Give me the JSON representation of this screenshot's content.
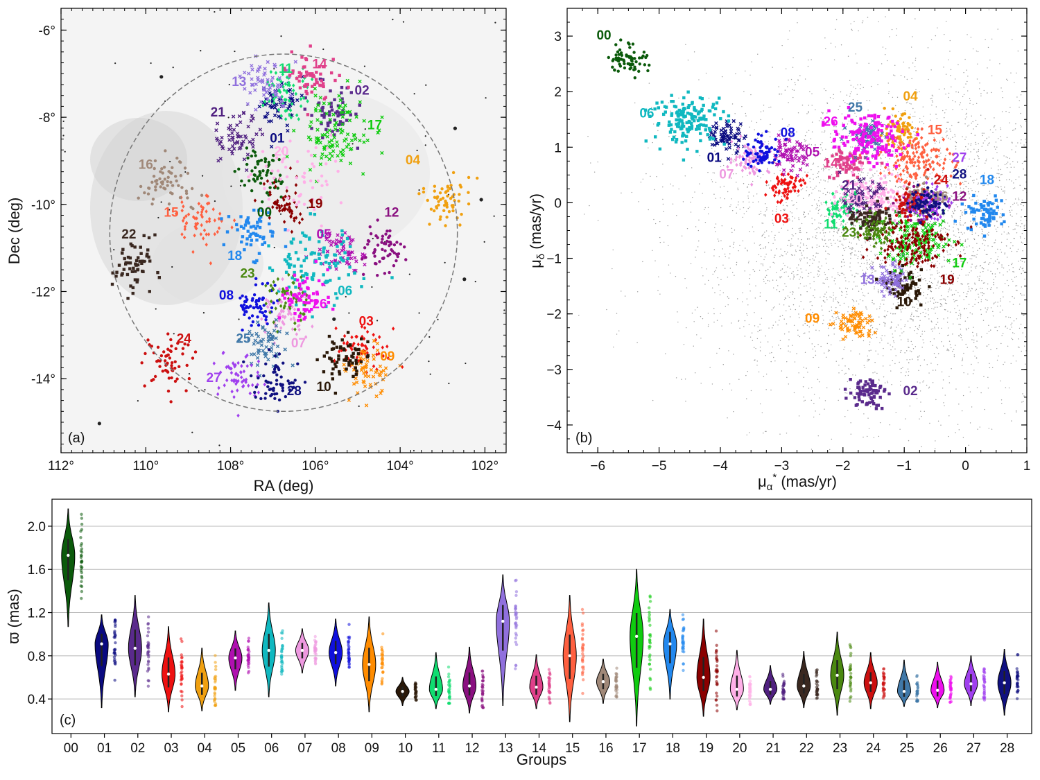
{
  "chart_data": [
    {
      "type": "scatter",
      "panel": "(a)",
      "xlabel": "RA (deg)",
      "ylabel": "Dec (deg)",
      "xlim": [
        112,
        101.5
      ],
      "ylim": [
        -15.7,
        -5.5
      ],
      "x_ticks": [
        "112°",
        "110°",
        "108°",
        "106°",
        "104°",
        "102°"
      ],
      "x_tick_values": [
        112,
        110,
        108,
        106,
        104,
        102
      ],
      "y_ticks": [
        "-6°",
        "-8°",
        "-10°",
        "-12°",
        "-14°"
      ],
      "y_tick_values": [
        -6,
        -8,
        -10,
        -12,
        -14
      ],
      "boundary_circle": {
        "center_ra": 106.75,
        "center_dec": -10.65,
        "radius_deg": 4.1
      },
      "groups": [
        {
          "id": "00",
          "ra": 107.2,
          "dec": -9.3,
          "label_ra": 107.2,
          "label_dec": -10.2
        },
        {
          "id": "01",
          "ra": 106.9,
          "dec": -7.7,
          "label_ra": 106.9,
          "label_dec": -8.5
        },
        {
          "id": "02",
          "ra": 105.6,
          "dec": -7.9,
          "label_ra": 104.9,
          "label_dec": -7.4
        },
        {
          "id": "03",
          "ra": 104.9,
          "dec": -13.3,
          "label_ra": 104.8,
          "label_dec": -12.7
        },
        {
          "id": "04",
          "ra": 102.9,
          "dec": -9.9,
          "label_ra": 103.7,
          "label_dec": -9.0
        },
        {
          "id": "05",
          "ra": 105.3,
          "dec": -11.1,
          "label_ra": 105.8,
          "label_dec": -10.7
        },
        {
          "id": "06",
          "ra": 106.0,
          "dec": -11.3,
          "label_ra": 105.3,
          "label_dec": -12.0
        },
        {
          "id": "07",
          "ra": 106.7,
          "dec": -12.6,
          "label_ra": 106.4,
          "label_dec": -13.2
        },
        {
          "id": "08",
          "ra": 107.4,
          "dec": -12.3,
          "label_ra": 108.1,
          "label_dec": -12.1
        },
        {
          "id": "09",
          "ra": 104.8,
          "dec": -13.8,
          "label_ra": 104.3,
          "label_dec": -13.5
        },
        {
          "id": "10",
          "ra": 105.3,
          "dec": -13.6,
          "label_ra": 105.8,
          "label_dec": -14.2
        },
        {
          "id": "11",
          "ra": 106.7,
          "dec": -7.5,
          "label_ra": 106.7,
          "label_dec": -6.9
        },
        {
          "id": "12",
          "ra": 104.3,
          "dec": -11.0,
          "label_ra": 104.2,
          "label_dec": -10.2
        },
        {
          "id": "13",
          "ra": 107.2,
          "dec": -7.2,
          "label_ra": 107.8,
          "label_dec": -7.2
        },
        {
          "id": "14",
          "ra": 106.1,
          "dec": -7.1,
          "label_ra": 105.9,
          "label_dec": -6.8
        },
        {
          "id": "15",
          "ra": 108.7,
          "dec": -10.3,
          "label_ra": 109.4,
          "label_dec": -10.2
        },
        {
          "id": "16",
          "ra": 109.5,
          "dec": -9.5,
          "label_ra": 110.0,
          "label_dec": -9.1
        },
        {
          "id": "17",
          "ra": 105.5,
          "dec": -8.4,
          "label_ra": 104.6,
          "label_dec": -8.2
        },
        {
          "id": "18",
          "ra": 107.4,
          "dec": -10.6,
          "label_ra": 107.9,
          "label_dec": -11.2
        },
        {
          "id": "19",
          "ra": 106.7,
          "dec": -10.0,
          "label_ra": 106.0,
          "label_dec": -10.0
        },
        {
          "id": "20",
          "ra": 106.4,
          "dec": -9.4,
          "label_ra": 106.8,
          "label_dec": -8.8
        },
        {
          "id": "21",
          "ra": 107.9,
          "dec": -8.5,
          "label_ra": 108.3,
          "label_dec": -7.9
        },
        {
          "id": "22",
          "ra": 110.2,
          "dec": -11.5,
          "label_ra": 110.4,
          "label_dec": -10.7
        },
        {
          "id": "23",
          "ra": 106.6,
          "dec": -12.2,
          "label_ra": 107.6,
          "label_dec": -11.6
        },
        {
          "id": "24",
          "ra": 109.5,
          "dec": -13.6,
          "label_ra": 109.1,
          "label_dec": -13.1
        },
        {
          "id": "25",
          "ra": 107.2,
          "dec": -13.2,
          "label_ra": 107.7,
          "label_dec": -13.1
        },
        {
          "id": "26",
          "ra": 106.3,
          "dec": -12.1,
          "label_ra": 105.9,
          "label_dec": -12.3
        },
        {
          "id": "27",
          "ra": 107.8,
          "dec": -13.9,
          "label_ra": 108.4,
          "label_dec": -14.0
        },
        {
          "id": "28",
          "ra": 107.0,
          "dec": -14.1,
          "label_ra": 106.5,
          "label_dec": -14.3
        }
      ]
    },
    {
      "type": "scatter",
      "panel": "(b)",
      "xlabel": "μα* (mas/yr)",
      "ylabel": "μδ (mas/yr)",
      "xlim": [
        -6.5,
        1.0
      ],
      "ylim": [
        -4.5,
        3.5
      ],
      "x_ticks": [
        "−6",
        "−5",
        "−4",
        "−3",
        "−2",
        "−1",
        "0",
        "1"
      ],
      "x_tick_values": [
        -6,
        -5,
        -4,
        -3,
        -2,
        -1,
        0,
        1
      ],
      "y_ticks": [
        "3",
        "2",
        "1",
        "0",
        "−1",
        "−2",
        "−3",
        "−4"
      ],
      "y_tick_values": [
        3,
        2,
        1,
        0,
        -1,
        -2,
        -3,
        -4
      ],
      "groups": [
        {
          "id": "00",
          "pmra": -5.5,
          "pmdec": 2.6,
          "label_pmra": -5.9,
          "label_pmdec": 3.0
        },
        {
          "id": "01",
          "pmra": -3.9,
          "pmdec": 1.2,
          "label_pmra": -4.1,
          "label_pmdec": 0.8
        },
        {
          "id": "02",
          "pmra": -1.6,
          "pmdec": -3.4,
          "label_pmra": -0.9,
          "label_pmdec": -3.4
        },
        {
          "id": "03",
          "pmra": -2.95,
          "pmdec": 0.3,
          "label_pmra": -3.0,
          "label_pmdec": -0.3
        },
        {
          "id": "04",
          "pmra": -1.1,
          "pmdec": 1.3,
          "label_pmra": -0.9,
          "label_pmdec": 1.9
        },
        {
          "id": "05",
          "pmra": -2.9,
          "pmdec": 0.85,
          "label_pmra": -2.5,
          "label_pmdec": 0.9
        },
        {
          "id": "06",
          "pmra": -4.5,
          "pmdec": 1.5,
          "label_pmra": -5.2,
          "label_pmdec": 1.6
        },
        {
          "id": "07",
          "pmra": -3.5,
          "pmdec": 0.8,
          "label_pmra": -3.9,
          "label_pmdec": 0.5
        },
        {
          "id": "08",
          "pmra": -3.3,
          "pmdec": 0.9,
          "label_pmra": -2.9,
          "label_pmdec": 1.25
        },
        {
          "id": "09",
          "pmra": -1.8,
          "pmdec": -2.2,
          "label_pmra": -2.5,
          "label_pmdec": -2.1
        },
        {
          "id": "10",
          "pmra": -1.0,
          "pmdec": -1.5,
          "label_pmra": -1.0,
          "label_pmdec": -1.8
        },
        {
          "id": "11",
          "pmra": -2.0,
          "pmdec": -0.1,
          "label_pmra": -2.2,
          "label_pmdec": -0.4
        },
        {
          "id": "12",
          "pmra": -0.8,
          "pmdec": -0.1,
          "label_pmra": -0.1,
          "label_pmdec": 0.1
        },
        {
          "id": "13",
          "pmra": -1.2,
          "pmdec": -1.4,
          "label_pmra": -1.6,
          "label_pmdec": -1.4
        },
        {
          "id": "14",
          "pmra": -1.9,
          "pmdec": 0.7,
          "label_pmra": -2.2,
          "label_pmdec": 0.7
        },
        {
          "id": "15",
          "pmra": -0.8,
          "pmdec": 0.8,
          "label_pmra": -0.5,
          "label_pmdec": 1.3
        },
        {
          "id": "16",
          "pmra": -0.7,
          "pmdec": 0.1,
          "label_pmra": -0.4,
          "label_pmdec": 0.1
        },
        {
          "id": "17",
          "pmra": -0.8,
          "pmdec": -0.7,
          "label_pmra": -0.1,
          "label_pmdec": -1.1
        },
        {
          "id": "18",
          "pmra": 0.3,
          "pmdec": -0.2,
          "label_pmra": 0.35,
          "label_pmdec": 0.4
        },
        {
          "id": "19",
          "pmra": -0.9,
          "pmdec": -0.7,
          "label_pmra": -0.3,
          "label_pmdec": -1.4
        },
        {
          "id": "20",
          "pmra": -1.5,
          "pmdec": 0.1,
          "label_pmra": -1.8,
          "label_pmdec": 0.05
        },
        {
          "id": "21",
          "pmra": -1.7,
          "pmdec": 0.1,
          "label_pmra": -1.9,
          "label_pmdec": 0.3
        },
        {
          "id": "22",
          "pmra": -1.5,
          "pmdec": -0.3,
          "label_pmra": -1.8,
          "label_pmdec": -0.25
        },
        {
          "id": "23",
          "pmra": -1.5,
          "pmdec": -0.5,
          "label_pmra": -1.9,
          "label_pmdec": -0.55
        },
        {
          "id": "24",
          "pmra": -0.9,
          "pmdec": 0.0,
          "label_pmra": -0.4,
          "label_pmdec": 0.4
        },
        {
          "id": "25",
          "pmra": -1.6,
          "pmdec": 1.2,
          "label_pmra": -1.8,
          "label_pmdec": 1.7
        },
        {
          "id": "26",
          "pmra": -1.6,
          "pmdec": 1.15,
          "label_pmra": -2.2,
          "label_pmdec": 1.45
        },
        {
          "id": "27",
          "pmra": -0.6,
          "pmdec": 0.0,
          "label_pmra": -0.1,
          "label_pmdec": 0.8
        },
        {
          "id": "28",
          "pmra": -0.6,
          "pmdec": 0.0,
          "label_pmra": -0.1,
          "label_pmdec": 0.5
        }
      ]
    },
    {
      "type": "violin",
      "panel": "(c)",
      "xlabel": "Groups",
      "ylabel": "ϖ (mas)",
      "ylim": [
        0.08,
        2.25
      ],
      "y_ticks": [
        "0.4",
        "0.8",
        "1.2",
        "1.6",
        "2.0"
      ],
      "y_tick_values": [
        0.4,
        0.8,
        1.2,
        1.6,
        2.0
      ],
      "grid": true,
      "categories": [
        "00",
        "01",
        "02",
        "03",
        "04",
        "05",
        "06",
        "07",
        "08",
        "09",
        "10",
        "11",
        "12",
        "13",
        "14",
        "15",
        "16",
        "17",
        "18",
        "19",
        "20",
        "21",
        "22",
        "23",
        "24",
        "25",
        "26",
        "27",
        "28"
      ],
      "median": [
        1.73,
        0.91,
        0.87,
        0.63,
        0.52,
        0.78,
        0.85,
        0.85,
        0.83,
        0.72,
        0.47,
        0.49,
        0.52,
        1.12,
        0.51,
        0.8,
        0.56,
        0.98,
        0.91,
        0.6,
        0.49,
        0.49,
        0.52,
        0.62,
        0.55,
        0.47,
        0.48,
        0.54,
        0.55
      ],
      "min": [
        1.07,
        0.32,
        0.42,
        0.28,
        0.29,
        0.48,
        0.42,
        0.64,
        0.52,
        0.28,
        0.34,
        0.31,
        0.27,
        0.34,
        0.31,
        0.19,
        0.36,
        0.15,
        0.4,
        0.24,
        0.3,
        0.35,
        0.32,
        0.25,
        0.31,
        0.33,
        0.32,
        0.34,
        0.25
      ],
      "max": [
        2.16,
        1.18,
        1.36,
        1.07,
        0.87,
        1.03,
        1.29,
        1.05,
        1.14,
        1.16,
        0.6,
        0.83,
        0.88,
        1.55,
        0.81,
        1.36,
        0.77,
        1.6,
        1.23,
        1.14,
        0.85,
        0.71,
        0.84,
        1.02,
        0.83,
        0.76,
        0.74,
        0.8,
        0.86
      ]
    }
  ],
  "colors": {
    "00": "#0b5a0b",
    "01": "#0a0a80",
    "02": "#5a2a8c",
    "03": "#ee1111",
    "04": "#f0a010",
    "05": "#b010b0",
    "06": "#10b8c0",
    "07": "#ee99e0",
    "08": "#1010dd",
    "09": "#ff8c00",
    "10": "#2a1808",
    "11": "#10dd70",
    "12": "#8a1080",
    "13": "#9070dd",
    "14": "#e0408a",
    "15": "#ff6040",
    "16": "#a08878",
    "17": "#10cc10",
    "18": "#2288ee",
    "19": "#8a0000",
    "20": "#ffb0e8",
    "21": "#502080",
    "22": "#3a2820",
    "23": "#4a8810",
    "24": "#cc1010",
    "25": "#4078a8",
    "26": "#ee10ee",
    "27": "#a040ee",
    "28": "#101080"
  },
  "panels": {
    "a_tag": "(a)",
    "b_tag": "(b)",
    "c_tag": "(c)"
  }
}
